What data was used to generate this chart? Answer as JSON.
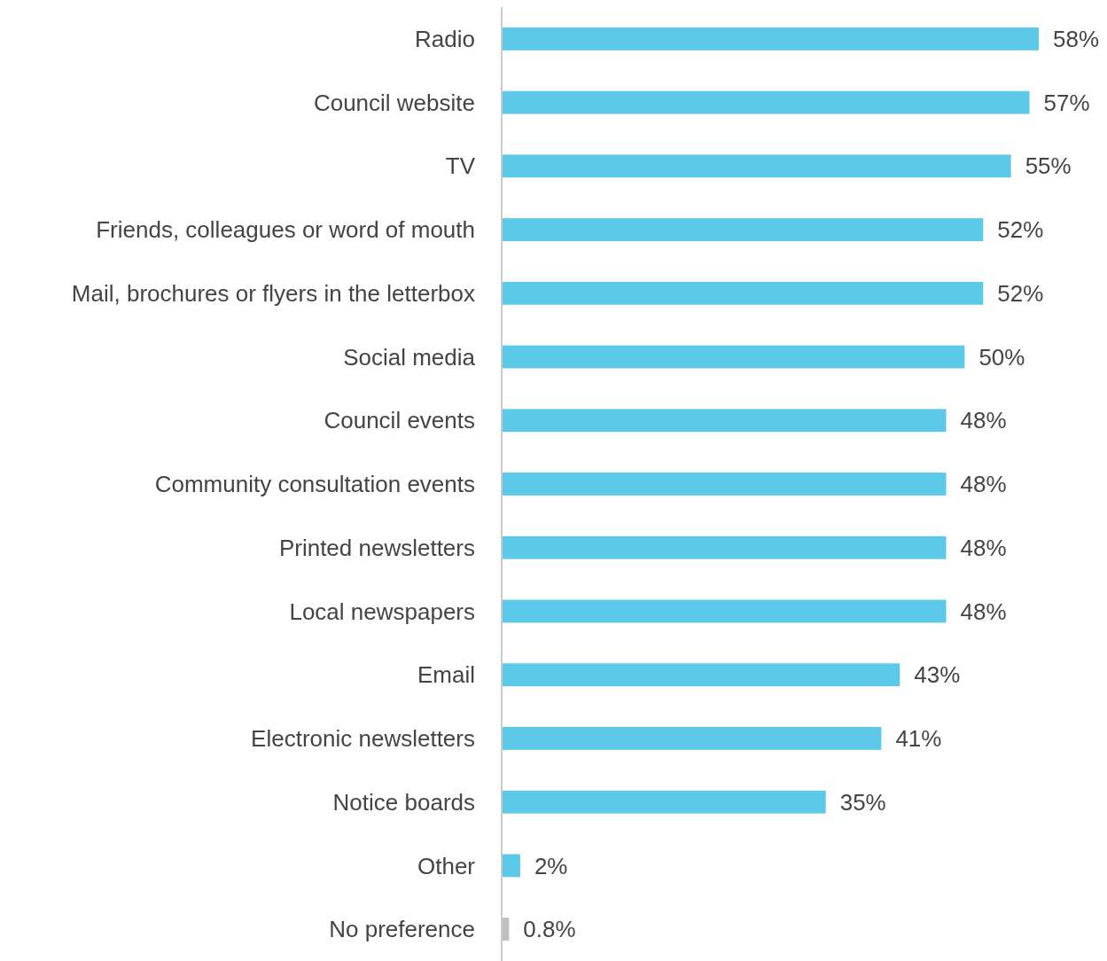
{
  "chart_data": {
    "type": "bar",
    "orientation": "horizontal",
    "categories": [
      "Radio",
      "Council website",
      "TV",
      "Friends, colleagues or word of mouth",
      "Mail, brochures or flyers in the letterbox",
      "Social media",
      "Council events",
      "Community consultation events",
      "Printed newsletters",
      "Local newspapers",
      "Email",
      "Electronic newsletters",
      "Notice boards",
      "Other",
      "No preference"
    ],
    "values": [
      58,
      57,
      55,
      52,
      52,
      50,
      48,
      48,
      48,
      48,
      43,
      41,
      35,
      2,
      0.8
    ],
    "colors": [
      "#5bc9e7",
      "#5bc9e7",
      "#5bc9e7",
      "#5bc9e7",
      "#5bc9e7",
      "#5bc9e7",
      "#5bc9e7",
      "#5bc9e7",
      "#5bc9e7",
      "#5bc9e7",
      "#5bc9e7",
      "#5bc9e7",
      "#5bc9e7",
      "#5bc9e7",
      "#bfbfbf"
    ],
    "value_labels": [
      "58%",
      "57%",
      "55%",
      "52%",
      "52%",
      "50%",
      "48%",
      "48%",
      "48%",
      "48%",
      "43%",
      "41%",
      "35%",
      "2%",
      "0.8%"
    ]
  }
}
